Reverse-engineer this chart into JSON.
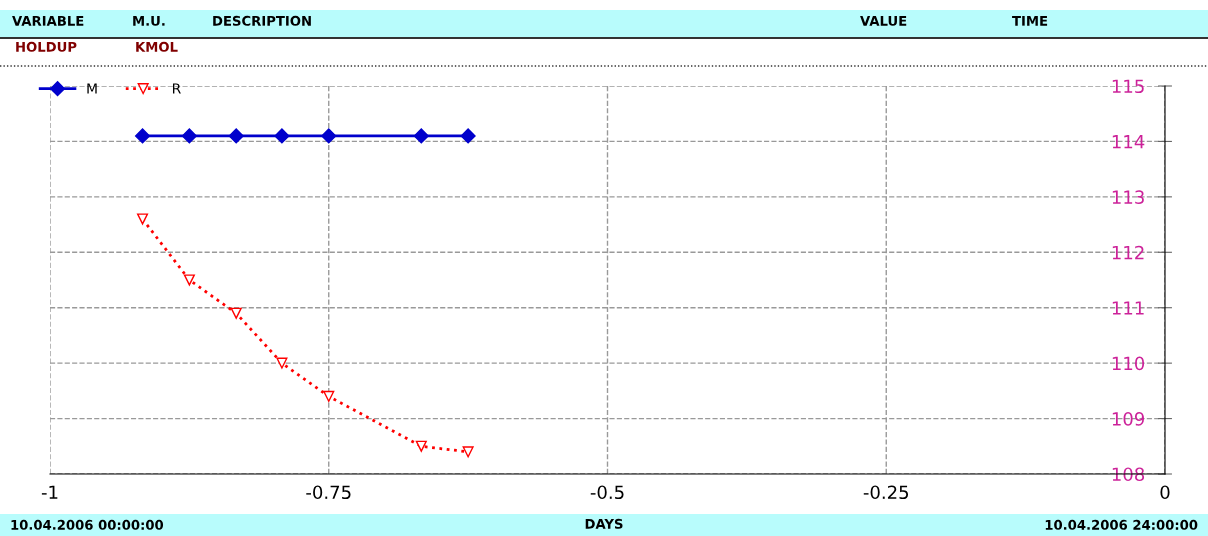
{
  "chart_data": {
    "type": "line",
    "xlabel": "DAYS",
    "annotations": [
      "VARIABLE",
      "M.U.",
      "DESCRIPTION",
      "VALUE",
      "TIME",
      "HOLDUP",
      "KMOL",
      "10.04.2006 00:00:00",
      "10.04.2006 24:00:00"
    ],
    "x": [
      -0.917,
      -0.875,
      -0.833,
      -0.792,
      -0.75,
      -0.667,
      -0.625
    ],
    "series": [
      {
        "name": "M",
        "color": "#0000cc",
        "marker": "diamond",
        "line_style": "solid",
        "values": [
          114.1,
          114.1,
          114.1,
          114.1,
          114.1,
          114.1,
          114.1
        ]
      },
      {
        "name": "R",
        "color": "#ff0000",
        "marker": "triangle",
        "line_style": "dotted",
        "values": [
          112.6,
          111.5,
          110.9,
          110.0,
          109.4,
          108.5,
          108.4
        ]
      }
    ],
    "xlim": [
      -1,
      0
    ],
    "xticks": [
      -1,
      -0.75,
      -0.5,
      -0.25,
      0
    ],
    "ylim": [
      108,
      115
    ],
    "yticks": [
      108,
      109,
      110,
      111,
      112,
      113,
      114,
      115
    ],
    "grid": true,
    "legend": "top left"
  }
}
